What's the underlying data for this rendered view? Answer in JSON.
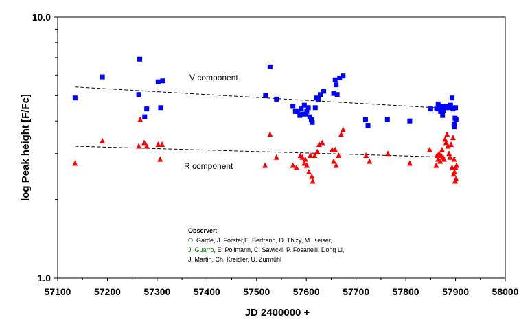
{
  "chart_data": {
    "type": "scatter",
    "xlabel": "JD 2400000 +",
    "ylabel": "log Peak height [F/Fc]",
    "xlim": [
      57100,
      58000
    ],
    "ylim": [
      1.0,
      10.0
    ],
    "yscale": "log",
    "x_ticks": [
      57100,
      57200,
      57300,
      57400,
      57500,
      57600,
      57700,
      57800,
      57900,
      58000
    ],
    "y_ticks": [
      1.0,
      10.0
    ],
    "y_tick_labels": [
      "1.0",
      "10.0"
    ],
    "grid": false,
    "series": [
      {
        "name": "V component",
        "marker": "square",
        "color": "#0000ff",
        "points": [
          [
            57135,
            4.9
          ],
          [
            57190,
            5.9
          ],
          [
            57263,
            5.05
          ],
          [
            57265,
            6.9
          ],
          [
            57275,
            4.15
          ],
          [
            57279,
            4.45
          ],
          [
            57302,
            5.65
          ],
          [
            57307,
            4.5
          ],
          [
            57311,
            5.7
          ],
          [
            57518,
            5.0
          ],
          [
            57527,
            6.45
          ],
          [
            57540,
            4.85
          ],
          [
            57573,
            4.55
          ],
          [
            57578,
            4.35
          ],
          [
            57583,
            4.35
          ],
          [
            57587,
            4.2
          ],
          [
            57590,
            4.45
          ],
          [
            57593,
            4.25
          ],
          [
            57596,
            4.6
          ],
          [
            57598,
            4.25
          ],
          [
            57601,
            4.35
          ],
          [
            57604,
            4.5
          ],
          [
            57607,
            4.15
          ],
          [
            57610,
            4.05
          ],
          [
            57612,
            3.95
          ],
          [
            57618,
            4.5
          ],
          [
            57620,
            4.9
          ],
          [
            57624,
            4.85
          ],
          [
            57628,
            5.05
          ],
          [
            57635,
            5.2
          ],
          [
            57655,
            5.1
          ],
          [
            57658,
            5.75
          ],
          [
            57660,
            5.5
          ],
          [
            57662,
            5.05
          ],
          [
            57667,
            5.85
          ],
          [
            57674,
            5.95
          ],
          [
            57719,
            4.05
          ],
          [
            57724,
            3.85
          ],
          [
            57763,
            4.05
          ],
          [
            57808,
            4.0
          ],
          [
            57850,
            4.45
          ],
          [
            57862,
            4.45
          ],
          [
            57865,
            4.65
          ],
          [
            57867,
            4.5
          ],
          [
            57870,
            4.35
          ],
          [
            57872,
            4.55
          ],
          [
            57874,
            4.2
          ],
          [
            57876,
            4.4
          ],
          [
            57878,
            4.55
          ],
          [
            57881,
            4.5
          ],
          [
            57884,
            4.55
          ],
          [
            57887,
            4.5
          ],
          [
            57890,
            4.6
          ],
          [
            57893,
            4.9
          ],
          [
            57895,
            4.45
          ],
          [
            57897,
            3.9
          ],
          [
            57898,
            3.8
          ],
          [
            57899,
            4.1
          ],
          [
            57900,
            4.5
          ],
          [
            57901,
            4.05
          ]
        ]
      },
      {
        "name": "R component",
        "marker": "triangle",
        "color": "#ff0000",
        "points": [
          [
            57135,
            2.75
          ],
          [
            57190,
            3.35
          ],
          [
            57263,
            3.2
          ],
          [
            57266,
            4.05
          ],
          [
            57274,
            3.3
          ],
          [
            57279,
            3.2
          ],
          [
            57302,
            3.25
          ],
          [
            57306,
            2.85
          ],
          [
            57310,
            3.25
          ],
          [
            57517,
            2.7
          ],
          [
            57527,
            3.55
          ],
          [
            57540,
            2.9
          ],
          [
            57573,
            2.7
          ],
          [
            57580,
            2.65
          ],
          [
            57588,
            2.95
          ],
          [
            57592,
            2.9
          ],
          [
            57596,
            2.75
          ],
          [
            57598,
            2.85
          ],
          [
            57601,
            2.7
          ],
          [
            57605,
            2.55
          ],
          [
            57608,
            2.95
          ],
          [
            57611,
            2.45
          ],
          [
            57613,
            2.35
          ],
          [
            57617,
            2.95
          ],
          [
            57622,
            3.05
          ],
          [
            57626,
            3.25
          ],
          [
            57632,
            3.3
          ],
          [
            57652,
            3.1
          ],
          [
            57655,
            2.8
          ],
          [
            57658,
            3.1
          ],
          [
            57660,
            2.7
          ],
          [
            57665,
            2.95
          ],
          [
            57670,
            3.55
          ],
          [
            57674,
            3.7
          ],
          [
            57720,
            2.95
          ],
          [
            57727,
            2.8
          ],
          [
            57764,
            3.0
          ],
          [
            57808,
            2.75
          ],
          [
            57848,
            3.1
          ],
          [
            57861,
            2.7
          ],
          [
            57863,
            2.95
          ],
          [
            57865,
            2.85
          ],
          [
            57867,
            3.0
          ],
          [
            57869,
            2.8
          ],
          [
            57871,
            2.95
          ],
          [
            57873,
            3.1
          ],
          [
            57875,
            2.9
          ],
          [
            57877,
            2.85
          ],
          [
            57879,
            3.4
          ],
          [
            57881,
            3.3
          ],
          [
            57883,
            3.55
          ],
          [
            57885,
            3.2
          ],
          [
            57887,
            3.0
          ],
          [
            57889,
            2.9
          ],
          [
            57891,
            3.25
          ],
          [
            57893,
            2.65
          ],
          [
            57895,
            3.45
          ],
          [
            57896,
            2.5
          ],
          [
            57897,
            2.85
          ],
          [
            57898,
            2.55
          ],
          [
            57899,
            2.35
          ],
          [
            57900,
            2.65
          ],
          [
            57901,
            2.4
          ],
          [
            57902,
            2.7
          ]
        ]
      }
    ],
    "trend_lines": [
      {
        "series": "V component",
        "x": [
          57135,
          57900
        ],
        "y": [
          5.4,
          4.45
        ]
      },
      {
        "series": "R component",
        "x": [
          57135,
          57900
        ],
        "y": [
          3.2,
          2.9
        ]
      }
    ],
    "annotations": {
      "v_label": "V component",
      "r_label": "R component",
      "observer_title": "Observer:",
      "observer_lines": [
        [
          {
            "text": "O. Garde, J. Forster,E. Bertrand, D. Thizy, M. Keiser,",
            "color": "#000000"
          }
        ],
        [
          {
            "text": "J. Guarro",
            "color": "#008000"
          },
          {
            "text": ", E. Pollmann, C. Sawicki, P. Fosanelli, Dong Li,",
            "color": "#000000"
          }
        ],
        [
          {
            "text": "J. Martin, Ch. Kreidler, U. Zurmühl",
            "color": "#000000"
          }
        ]
      ]
    }
  }
}
